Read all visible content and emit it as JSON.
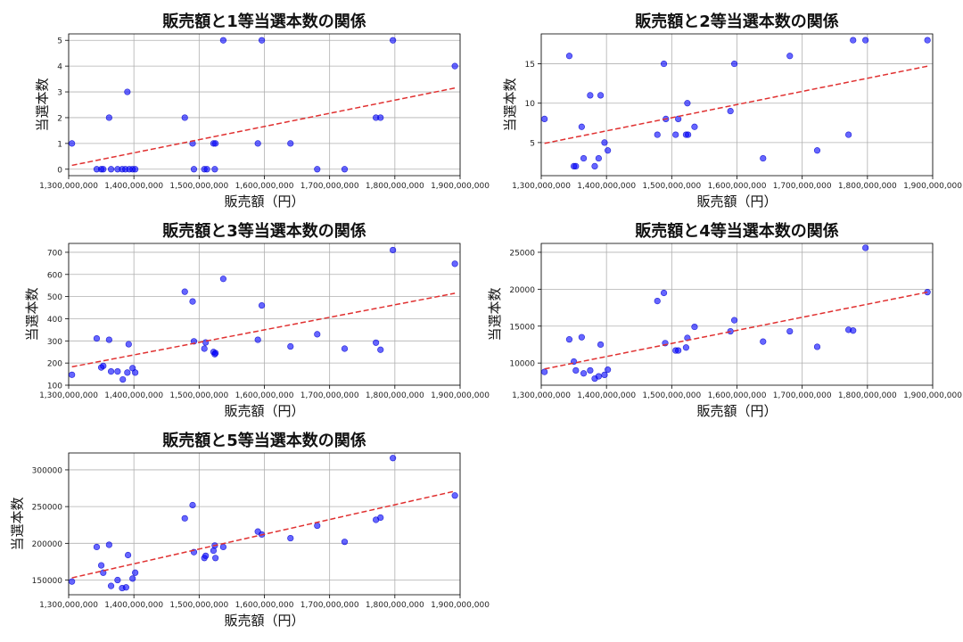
{
  "colors": {
    "point": "#0000ff",
    "trend": "#e03030",
    "grid": "#b0b0b0"
  },
  "chart_data": [
    {
      "type": "scatter",
      "title": "販売額と1等当選本数の関係",
      "xlabel": "販売額（円）",
      "ylabel": "当選本数",
      "xlim": [
        1300000000,
        1900000000
      ],
      "xticks": [
        1300000000,
        1400000000,
        1500000000,
        1600000000,
        1700000000,
        1800000000,
        1900000000
      ],
      "xtick_labels": [
        "1,300,000,000",
        "1,400,000,000",
        "1,500,000,000",
        "1,600,000,000",
        "1,700,000,000",
        "1,800,000,000",
        "1,900,000,000"
      ],
      "ylim": [
        -0.25,
        5.25
      ],
      "yticks": [
        0,
        1,
        2,
        3,
        4,
        5
      ],
      "ytick_labels": [
        "0",
        "1",
        "2",
        "3",
        "4",
        "5"
      ],
      "grid": true,
      "trendline": {
        "style": "dashed",
        "x": [
          1305000000,
          1892000000
        ],
        "y": [
          0.15,
          3.15
        ]
      },
      "points": [
        [
          1305000000,
          1
        ],
        [
          1343000000,
          0
        ],
        [
          1350000000,
          0
        ],
        [
          1353000000,
          0
        ],
        [
          1362000000,
          2
        ],
        [
          1365000000,
          0
        ],
        [
          1375000000,
          0
        ],
        [
          1382000000,
          0
        ],
        [
          1387000000,
          0
        ],
        [
          1390000000,
          3
        ],
        [
          1393000000,
          0
        ],
        [
          1398000000,
          0
        ],
        [
          1402000000,
          0
        ],
        [
          1478000000,
          2
        ],
        [
          1490000000,
          1
        ],
        [
          1492000000,
          0
        ],
        [
          1508000000,
          0
        ],
        [
          1512000000,
          0
        ],
        [
          1522000000,
          1
        ],
        [
          1524000000,
          0
        ],
        [
          1525000000,
          1
        ],
        [
          1537000000,
          5
        ],
        [
          1590000000,
          1
        ],
        [
          1596000000,
          5
        ],
        [
          1640000000,
          1
        ],
        [
          1681000000,
          0
        ],
        [
          1723000000,
          0
        ],
        [
          1771000000,
          2
        ],
        [
          1778000000,
          2
        ],
        [
          1797000000,
          5
        ],
        [
          1892000000,
          4
        ]
      ]
    },
    {
      "type": "scatter",
      "title": "販売額と2等当選本数の関係",
      "xlabel": "販売額（円）",
      "ylabel": "当選本数",
      "xlim": [
        1300000000,
        1900000000
      ],
      "xticks": [
        1300000000,
        1400000000,
        1500000000,
        1600000000,
        1700000000,
        1800000000,
        1900000000
      ],
      "xtick_labels": [
        "1,300,000,000",
        "1,400,000,000",
        "1,500,000,000",
        "1,600,000,000",
        "1,700,000,000",
        "1,800,000,000",
        "1,900,000,000"
      ],
      "ylim": [
        0.8,
        18.8
      ],
      "yticks": [
        5,
        10,
        15
      ],
      "ytick_labels": [
        "5",
        "10",
        "15"
      ],
      "grid": true,
      "trendline": {
        "style": "dashed",
        "x": [
          1305000000,
          1892000000
        ],
        "y": [
          4.9,
          14.7
        ]
      },
      "points": [
        [
          1305000000,
          8
        ],
        [
          1343000000,
          16
        ],
        [
          1350000000,
          2
        ],
        [
          1353000000,
          2
        ],
        [
          1362000000,
          7
        ],
        [
          1365000000,
          3
        ],
        [
          1375000000,
          11
        ],
        [
          1382000000,
          2
        ],
        [
          1388000000,
          3
        ],
        [
          1391000000,
          11
        ],
        [
          1397000000,
          5
        ],
        [
          1402000000,
          4
        ],
        [
          1478000000,
          6
        ],
        [
          1488000000,
          15
        ],
        [
          1491000000,
          8
        ],
        [
          1506000000,
          6
        ],
        [
          1510000000,
          8
        ],
        [
          1522000000,
          6
        ],
        [
          1524000000,
          10
        ],
        [
          1525000000,
          6
        ],
        [
          1535000000,
          7
        ],
        [
          1590000000,
          9
        ],
        [
          1596000000,
          15
        ],
        [
          1640000000,
          3
        ],
        [
          1681000000,
          16
        ],
        [
          1723000000,
          4
        ],
        [
          1771000000,
          6
        ],
        [
          1778000000,
          18
        ],
        [
          1797000000,
          18
        ],
        [
          1892000000,
          18
        ]
      ]
    },
    {
      "type": "scatter",
      "title": "販売額と3等当選本数の関係",
      "xlabel": "販売額（円）",
      "ylabel": "当選本数",
      "xlim": [
        1300000000,
        1900000000
      ],
      "xticks": [
        1300000000,
        1400000000,
        1500000000,
        1600000000,
        1700000000,
        1800000000,
        1900000000
      ],
      "xtick_labels": [
        "1,300,000,000",
        "1,400,000,000",
        "1,500,000,000",
        "1,600,000,000",
        "1,700,000,000",
        "1,800,000,000",
        "1,900,000,000"
      ],
      "ylim": [
        100,
        740
      ],
      "yticks": [
        100,
        200,
        300,
        400,
        500,
        600,
        700
      ],
      "ytick_labels": [
        "100",
        "200",
        "300",
        "400",
        "500",
        "600",
        "700"
      ],
      "grid": true,
      "trendline": {
        "style": "dashed",
        "x": [
          1305000000,
          1892000000
        ],
        "y": [
          183,
          515
        ]
      },
      "points": [
        [
          1305000000,
          147
        ],
        [
          1343000000,
          311
        ],
        [
          1350000000,
          180
        ],
        [
          1353000000,
          187
        ],
        [
          1362000000,
          305
        ],
        [
          1365000000,
          162
        ],
        [
          1375000000,
          162
        ],
        [
          1383000000,
          126
        ],
        [
          1390000000,
          157
        ],
        [
          1392000000,
          285
        ],
        [
          1398000000,
          177
        ],
        [
          1402000000,
          157
        ],
        [
          1478000000,
          522
        ],
        [
          1490000000,
          478
        ],
        [
          1492000000,
          298
        ],
        [
          1508000000,
          265
        ],
        [
          1510000000,
          293
        ],
        [
          1522000000,
          250
        ],
        [
          1524000000,
          240
        ],
        [
          1525000000,
          245
        ],
        [
          1537000000,
          580
        ],
        [
          1590000000,
          305
        ],
        [
          1596000000,
          460
        ],
        [
          1640000000,
          275
        ],
        [
          1681000000,
          330
        ],
        [
          1723000000,
          265
        ],
        [
          1771000000,
          292
        ],
        [
          1778000000,
          260
        ],
        [
          1797000000,
          710
        ],
        [
          1892000000,
          648
        ]
      ]
    },
    {
      "type": "scatter",
      "title": "販売額と4等当選本数の関係",
      "xlabel": "販売額（円）",
      "ylabel": "当選本数",
      "xlim": [
        1300000000,
        1900000000
      ],
      "xticks": [
        1300000000,
        1400000000,
        1500000000,
        1600000000,
        1700000000,
        1800000000,
        1900000000
      ],
      "xtick_labels": [
        "1,300,000,000",
        "1,400,000,000",
        "1,500,000,000",
        "1,600,000,000",
        "1,700,000,000",
        "1,800,000,000",
        "1,900,000,000"
      ],
      "ylim": [
        7000,
        26200
      ],
      "yticks": [
        10000,
        15000,
        20000,
        25000
      ],
      "ytick_labels": [
        "10000",
        "15000",
        "20000",
        "25000"
      ],
      "grid": true,
      "trendline": {
        "style": "dashed",
        "x": [
          1305000000,
          1892000000
        ],
        "y": [
          9200,
          19600
        ]
      },
      "points": [
        [
          1305000000,
          8800
        ],
        [
          1343000000,
          13200
        ],
        [
          1350000000,
          10200
        ],
        [
          1353000000,
          9000
        ],
        [
          1362000000,
          13500
        ],
        [
          1365000000,
          8600
        ],
        [
          1375000000,
          9000
        ],
        [
          1382000000,
          7900
        ],
        [
          1388000000,
          8200
        ],
        [
          1391000000,
          12500
        ],
        [
          1397000000,
          8400
        ],
        [
          1402000000,
          9100
        ],
        [
          1478000000,
          18400
        ],
        [
          1488000000,
          19500
        ],
        [
          1490000000,
          12700
        ],
        [
          1506000000,
          11700
        ],
        [
          1510000000,
          11700
        ],
        [
          1522000000,
          12100
        ],
        [
          1524000000,
          13400
        ],
        [
          1535000000,
          14900
        ],
        [
          1590000000,
          14300
        ],
        [
          1596000000,
          15800
        ],
        [
          1640000000,
          12900
        ],
        [
          1681000000,
          14300
        ],
        [
          1723000000,
          12200
        ],
        [
          1771000000,
          14500
        ],
        [
          1778000000,
          14400
        ],
        [
          1797000000,
          25600
        ],
        [
          1892000000,
          19600
        ]
      ]
    },
    {
      "type": "scatter",
      "title": "販売額と5等当選本数の関係",
      "xlabel": "販売額（円）",
      "ylabel": "当選本数",
      "xlim": [
        1300000000,
        1900000000
      ],
      "xticks": [
        1300000000,
        1400000000,
        1500000000,
        1600000000,
        1700000000,
        1800000000,
        1900000000
      ],
      "xtick_labels": [
        "1,300,000,000",
        "1,400,000,000",
        "1,500,000,000",
        "1,600,000,000",
        "1,700,000,000",
        "1,800,000,000",
        "1,900,000,000"
      ],
      "ylim": [
        130000,
        323000
      ],
      "yticks": [
        150000,
        200000,
        250000,
        300000
      ],
      "ytick_labels": [
        "150000",
        "200000",
        "250000",
        "300000"
      ],
      "grid": true,
      "trendline": {
        "style": "dashed",
        "x": [
          1305000000,
          1892000000
        ],
        "y": [
          153000,
          271000
        ]
      },
      "points": [
        [
          1305000000,
          148000
        ],
        [
          1343000000,
          195000
        ],
        [
          1350000000,
          170000
        ],
        [
          1353000000,
          160000
        ],
        [
          1362000000,
          198000
        ],
        [
          1365000000,
          142000
        ],
        [
          1375000000,
          150000
        ],
        [
          1382000000,
          139000
        ],
        [
          1388000000,
          140000
        ],
        [
          1391000000,
          184000
        ],
        [
          1398000000,
          152000
        ],
        [
          1402000000,
          160000
        ],
        [
          1478000000,
          234000
        ],
        [
          1490000000,
          252000
        ],
        [
          1492000000,
          188000
        ],
        [
          1508000000,
          180000
        ],
        [
          1510000000,
          183000
        ],
        [
          1522000000,
          190000
        ],
        [
          1524000000,
          197000
        ],
        [
          1525000000,
          180000
        ],
        [
          1537000000,
          195000
        ],
        [
          1590000000,
          216000
        ],
        [
          1596000000,
          212000
        ],
        [
          1640000000,
          207000
        ],
        [
          1681000000,
          224000
        ],
        [
          1723000000,
          202000
        ],
        [
          1771000000,
          232000
        ],
        [
          1778000000,
          235000
        ],
        [
          1797000000,
          316000
        ],
        [
          1892000000,
          265000
        ]
      ]
    }
  ]
}
